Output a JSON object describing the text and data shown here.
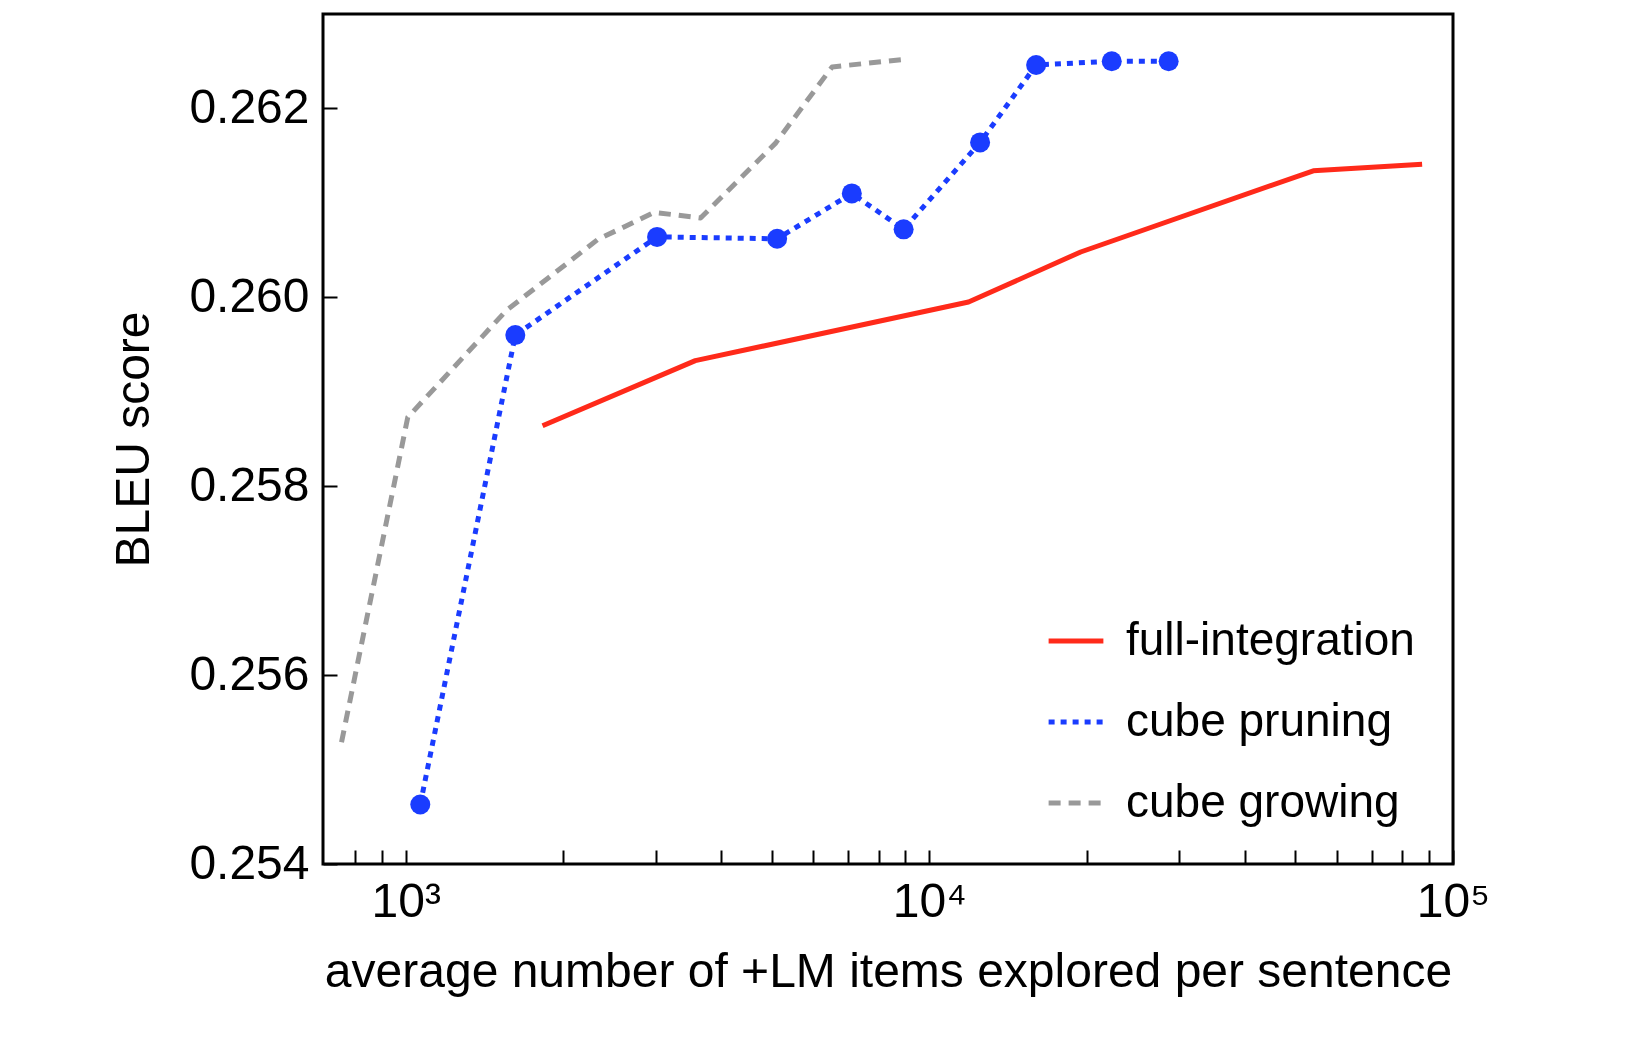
{
  "chart_data": {
    "type": "line",
    "xlabel": "average number of +LM items explored per sentence",
    "ylabel": "BLEU score",
    "log": "x",
    "grid": false,
    "legend": "bottom right",
    "xlim": [
      695,
      100000
    ],
    "xticks": [
      {
        "value": 800,
        "label": null
      },
      {
        "value": 900,
        "label": null
      },
      {
        "value": 1000,
        "label": "10³"
      },
      {
        "value": 2000,
        "label": null
      },
      {
        "value": 3000,
        "label": null
      },
      {
        "value": 4000,
        "label": null
      },
      {
        "value": 5000,
        "label": null
      },
      {
        "value": 6000,
        "label": null
      },
      {
        "value": 7000,
        "label": null
      },
      {
        "value": 8000,
        "label": null
      },
      {
        "value": 9000,
        "label": null
      },
      {
        "value": 10000,
        "label": "10⁴"
      },
      {
        "value": 20000,
        "label": null
      },
      {
        "value": 30000,
        "label": null
      },
      {
        "value": 40000,
        "label": null
      },
      {
        "value": 50000,
        "label": null
      },
      {
        "value": 60000,
        "label": null
      },
      {
        "value": 70000,
        "label": null
      },
      {
        "value": 80000,
        "label": null
      },
      {
        "value": 90000,
        "label": null
      },
      {
        "value": 100000,
        "label": "10⁵"
      }
    ],
    "ylim": [
      0.254,
      0.263
    ],
    "yticks": [
      {
        "value": 0.254,
        "label": "0.254"
      },
      {
        "value": 0.256,
        "label": "0.256"
      },
      {
        "value": 0.258,
        "label": "0.258"
      },
      {
        "value": 0.26,
        "label": "0.260"
      },
      {
        "value": 0.262,
        "label": "0.262"
      }
    ],
    "series": [
      {
        "name": "full-integration",
        "color": "#ff2a1a",
        "line_style": "solid",
        "marker": "none",
        "x": [
          1825,
          3573,
          11880,
          19450,
          54100,
          87300
        ],
        "values": [
          0.25864,
          0.25933,
          0.25995,
          0.26048,
          0.26134,
          0.26141
        ]
      },
      {
        "name": "cube pruning",
        "color": "#1a3cff",
        "line_style": "dotted",
        "marker": "circle",
        "x": [
          1066,
          1619,
          3020,
          5120,
          7110,
          8930,
          12500,
          15990,
          22300,
          28640
        ],
        "values": [
          0.25463,
          0.2596,
          0.26064,
          0.26062,
          0.2611,
          0.26072,
          0.26164,
          0.26246,
          0.2625,
          0.2625
        ]
      },
      {
        "name": "cube growing",
        "color": "#999999",
        "line_style": "dashed",
        "marker": "none",
        "x": [
          754,
          1009,
          1556,
          2323,
          2981,
          3656,
          5080,
          6520,
          8980
        ],
        "values": [
          0.25529,
          0.25873,
          0.25986,
          0.26061,
          0.2609,
          0.26084,
          0.26163,
          0.26244,
          0.26252
        ]
      }
    ]
  }
}
